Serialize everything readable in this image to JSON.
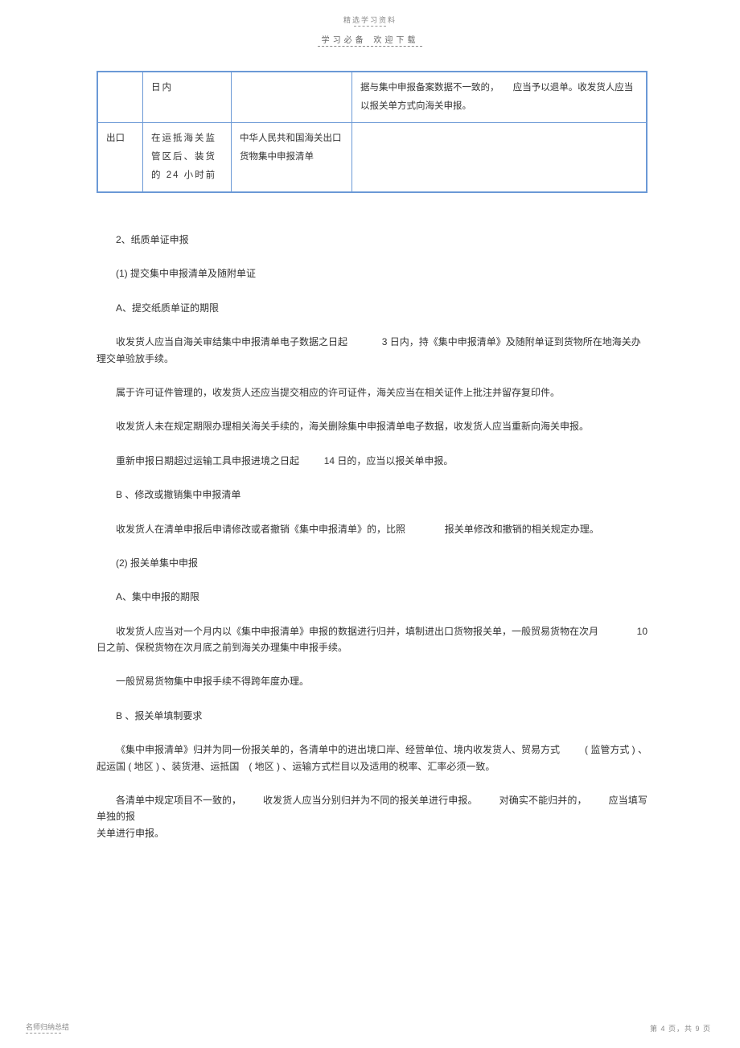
{
  "header": {
    "top": "精选学习资料",
    "sub_left": "学习必备",
    "sub_right": "欢迎下载"
  },
  "table": {
    "row1": {
      "c1": "",
      "c2": "日内",
      "c3": "",
      "c4": "据与集中申报备案数据不一致的，　　应当予以退单。收发货人应当以报关单方式向海关申报。"
    },
    "row2": {
      "c1": "出口",
      "c2": "在运抵海关监管区后、装货的 24 小时前",
      "c3": "中华人民共和国海关出口货物集中申报清单",
      "c4": ""
    }
  },
  "body": {
    "p1": "2、纸质单证申报",
    "p2": "(1) 提交集中申报清单及随附单证",
    "p3": "A、提交纸质单证的期限",
    "p4a": "收发货人应当自海关审结集中申报清单电子数据之日起",
    "p4b": "3 日内，持《集中申报清单》及随附单证到货物所在地海关办",
    "p4c": "理交单验放手续。",
    "p5": "属于许可证件管理的，收发货人还应当提交相应的许可证件，海关应当在相关证件上批注并留存复印件。",
    "p6": "收发货人未在规定期限办理相关海关手续的，海关删除集中申报清单电子数据，收发货人应当重新向海关申报。",
    "p7a": "重新申报日期超过运输工具申报进境之日起",
    "p7b": "14 日的，应当以报关单申报。",
    "p8": "B 、修改或撤销集中申报清单",
    "p9a": "收发货人在清单申报后申请修改或者撤销《集中申报清单》的，比照",
    "p9b": "报关单修改和撤销的相关规定办理。",
    "p10": "(2) 报关单集中申报",
    "p11": "A、集中申报的期限",
    "p12a": "收发货人应当对一个月内以《集中申报清单》申报的数据进行归并，填制进出口货物报关单，一般贸易货物在次月",
    "p12b": "10",
    "p12c": "日之前、保税货物在次月底之前到海关办理集中申报手续。",
    "p13": "一般贸易货物集中申报手续不得跨年度办理。",
    "p14": "B 、报关单填制要求",
    "p15a": "《集中申报清单》归并为同一份报关单的，各清单中的进出境口岸、经营单位、境内收发货人、贸易方式",
    "p15b": "( 监管方式  ) 、",
    "p15c": "起运国 ( 地区 ) 、装货港、运抵国　( 地区 ) 、运输方式栏目以及适用的税率、汇率必须一致。",
    "p16a": "各清单中规定项目不一致的，",
    "p16b": "收发货人应当分别归并为不同的报关单进行申报。",
    "p16c": "对确实不能归并的，",
    "p16d": "应当填写单独的报",
    "p16e": "关单进行申报。"
  },
  "footer": {
    "left": "名师归纳总结",
    "right": "第 4 页，共 9 页"
  },
  "colors": {
    "border": "#6b99d6",
    "text": "#333333",
    "muted": "#888888"
  }
}
